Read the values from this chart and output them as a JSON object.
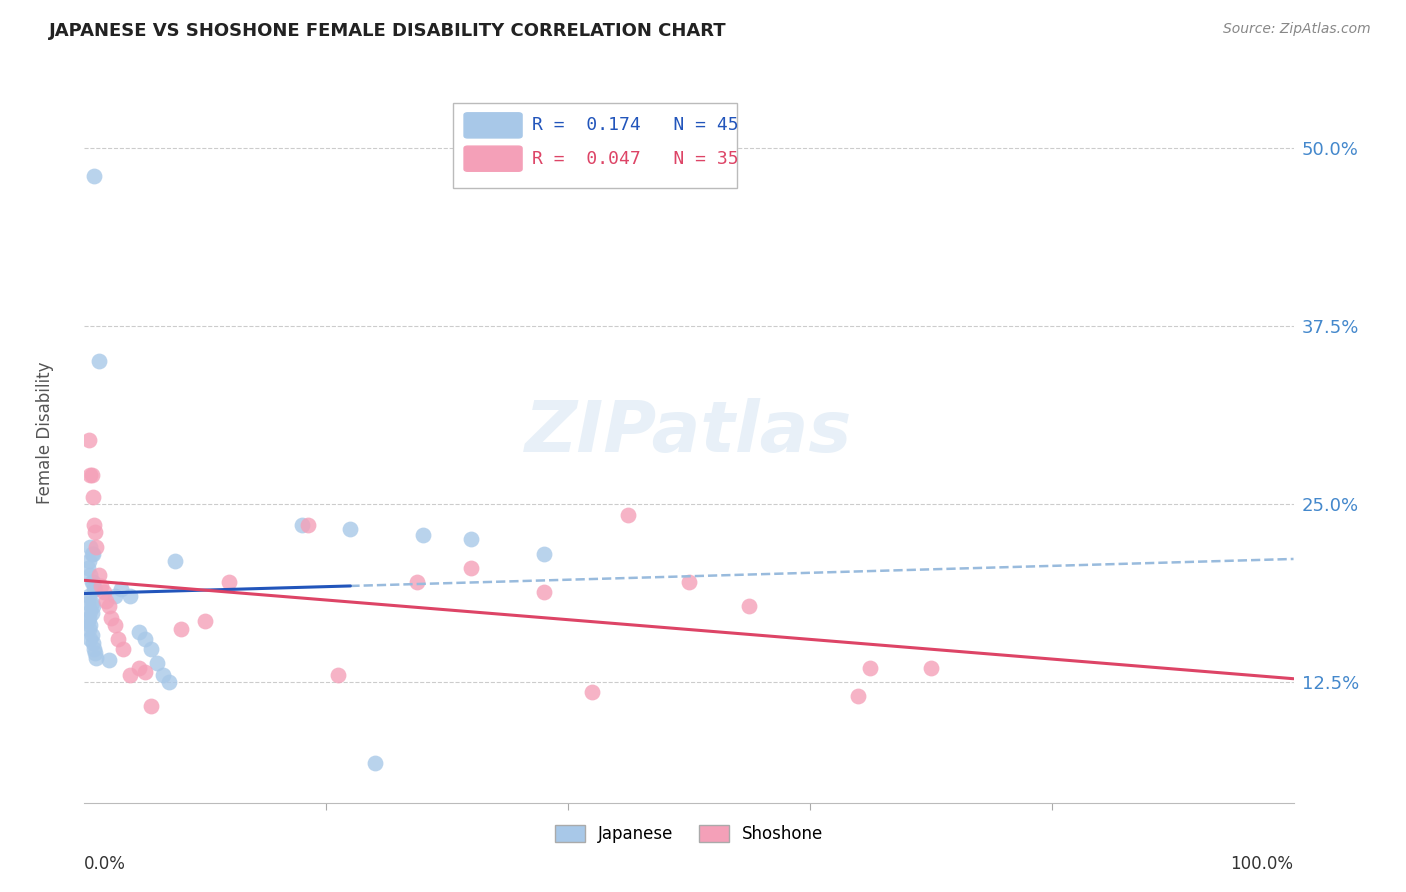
{
  "title": "JAPANESE VS SHOSHONE FEMALE DISABILITY CORRELATION CHART",
  "source": "Source: ZipAtlas.com",
  "ylabel": "Female Disability",
  "y_tick_labels": [
    "12.5%",
    "25.0%",
    "37.5%",
    "50.0%"
  ],
  "y_tick_values": [
    0.125,
    0.25,
    0.375,
    0.5
  ],
  "x_min": 0.0,
  "x_max": 1.0,
  "y_min": 0.04,
  "y_max": 0.56,
  "japanese_color": "#a8c8e8",
  "shoshone_color": "#f4a0b8",
  "japanese_line_color": "#2255bb",
  "shoshone_line_color": "#dd4466",
  "dashed_line_color": "#99bbdd",
  "legend_R_japanese": "0.174",
  "legend_N_japanese": "45",
  "legend_R_shoshone": "0.047",
  "legend_N_shoshone": "35",
  "watermark": "ZIPatlas",
  "japanese_points_x": [
    0.008,
    0.012,
    0.005,
    0.006,
    0.007,
    0.004,
    0.003,
    0.005,
    0.006,
    0.007,
    0.008,
    0.009,
    0.004,
    0.003,
    0.006,
    0.007,
    0.005,
    0.006,
    0.004,
    0.003,
    0.005,
    0.004,
    0.006,
    0.005,
    0.007,
    0.008,
    0.009,
    0.01,
    0.02,
    0.025,
    0.03,
    0.038,
    0.045,
    0.05,
    0.055,
    0.06,
    0.065,
    0.07,
    0.075,
    0.18,
    0.22,
    0.28,
    0.32,
    0.38,
    0.24
  ],
  "japanese_points_y": [
    0.48,
    0.35,
    0.22,
    0.215,
    0.215,
    0.21,
    0.205,
    0.2,
    0.195,
    0.195,
    0.19,
    0.19,
    0.185,
    0.18,
    0.18,
    0.178,
    0.175,
    0.173,
    0.17,
    0.168,
    0.165,
    0.162,
    0.158,
    0.155,
    0.152,
    0.148,
    0.145,
    0.142,
    0.14,
    0.185,
    0.19,
    0.185,
    0.16,
    0.155,
    0.148,
    0.138,
    0.13,
    0.125,
    0.21,
    0.235,
    0.232,
    0.228,
    0.225,
    0.215,
    0.068
  ],
  "shoshone_points_x": [
    0.004,
    0.005,
    0.006,
    0.007,
    0.008,
    0.009,
    0.01,
    0.012,
    0.014,
    0.016,
    0.018,
    0.02,
    0.022,
    0.025,
    0.028,
    0.032,
    0.038,
    0.045,
    0.05,
    0.055,
    0.08,
    0.1,
    0.12,
    0.185,
    0.21,
    0.275,
    0.32,
    0.38,
    0.42,
    0.45,
    0.5,
    0.55,
    0.64,
    0.65,
    0.7
  ],
  "shoshone_points_y": [
    0.295,
    0.27,
    0.27,
    0.255,
    0.235,
    0.23,
    0.22,
    0.2,
    0.192,
    0.188,
    0.182,
    0.178,
    0.17,
    0.165,
    0.155,
    0.148,
    0.13,
    0.135,
    0.132,
    0.108,
    0.162,
    0.168,
    0.195,
    0.235,
    0.13,
    0.195,
    0.205,
    0.188,
    0.118,
    0.242,
    0.195,
    0.178,
    0.115,
    0.135,
    0.135
  ]
}
